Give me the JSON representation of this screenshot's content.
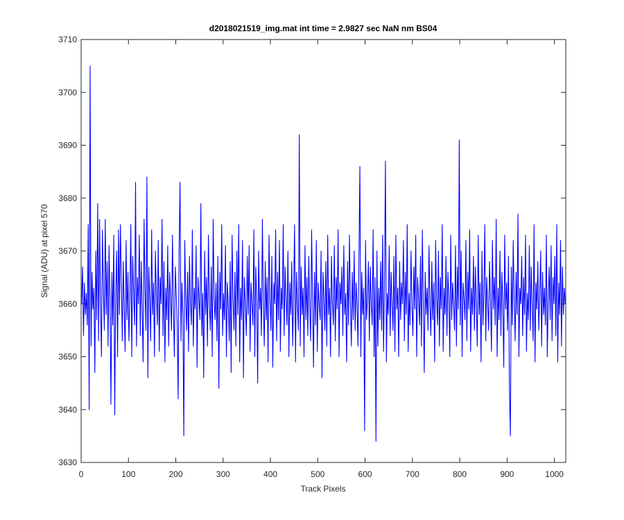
{
  "chart_data": {
    "type": "line",
    "title": "d2018021519_img.mat int time = 2.9827 sec  NaN nm BS04",
    "x_label": "Track Pixels",
    "y_label": "Signal (ADU) at pixel 570",
    "xlim": [
      0,
      1024
    ],
    "ylim": [
      3630,
      3710
    ],
    "xticks": [
      0,
      100,
      200,
      300,
      400,
      500,
      600,
      700,
      800,
      900,
      1000
    ],
    "yticks": [
      3630,
      3640,
      3650,
      3660,
      3670,
      3680,
      3690,
      3700,
      3710
    ],
    "grid": false,
    "series": [
      {
        "color": "#0000ff",
        "x": [
          1,
          3,
          5,
          7,
          9,
          11,
          13,
          15,
          17,
          19,
          21,
          23,
          25,
          27,
          29,
          31,
          33,
          35,
          37,
          39,
          41,
          43,
          45,
          47,
          49,
          51,
          53,
          55,
          57,
          59,
          61,
          63,
          65,
          67,
          69,
          71,
          73,
          75,
          77,
          79,
          81,
          83,
          85,
          87,
          89,
          91,
          93,
          95,
          97,
          99,
          101,
          103,
          105,
          107,
          109,
          111,
          113,
          115,
          117,
          119,
          121,
          123,
          125,
          127,
          129,
          131,
          133,
          135,
          137,
          139,
          141,
          143,
          145,
          147,
          149,
          151,
          153,
          155,
          157,
          159,
          161,
          163,
          165,
          167,
          169,
          171,
          173,
          175,
          177,
          179,
          181,
          183,
          185,
          187,
          189,
          191,
          193,
          195,
          197,
          199,
          201,
          203,
          205,
          207,
          209,
          211,
          213,
          215,
          217,
          219,
          221,
          223,
          225,
          227,
          229,
          231,
          233,
          235,
          237,
          239,
          241,
          243,
          245,
          247,
          249,
          251,
          253,
          255,
          257,
          259,
          261,
          263,
          265,
          267,
          269,
          271,
          273,
          275,
          277,
          279,
          281,
          283,
          285,
          287,
          289,
          291,
          293,
          295,
          297,
          299,
          301,
          303,
          305,
          307,
          309,
          311,
          313,
          315,
          317,
          319,
          321,
          323,
          325,
          327,
          329,
          331,
          333,
          335,
          337,
          339,
          341,
          343,
          345,
          347,
          349,
          351,
          353,
          355,
          357,
          359,
          361,
          363,
          365,
          367,
          369,
          371,
          373,
          375,
          377,
          379,
          381,
          383,
          385,
          387,
          389,
          391,
          393,
          395,
          397,
          399,
          401,
          403,
          405,
          407,
          409,
          411,
          413,
          415,
          417,
          419,
          421,
          423,
          425,
          427,
          429,
          431,
          433,
          435,
          437,
          439,
          441,
          443,
          445,
          447,
          449,
          451,
          453,
          455,
          457,
          459,
          461,
          463,
          465,
          467,
          469,
          471,
          473,
          475,
          477,
          479,
          481,
          483,
          485,
          487,
          489,
          491,
          493,
          495,
          497,
          499,
          501,
          503,
          505,
          507,
          509,
          511,
          513,
          515,
          517,
          519,
          521,
          523,
          525,
          527,
          529,
          531,
          533,
          535,
          537,
          539,
          541,
          543,
          545,
          547,
          549,
          551,
          553,
          555,
          557,
          559,
          561,
          563,
          565,
          567,
          569,
          571,
          573,
          575,
          577,
          579,
          581,
          583,
          585,
          587,
          589,
          591,
          593,
          595,
          597,
          599,
          601,
          603,
          605,
          607,
          609,
          611,
          613,
          615,
          617,
          619,
          621,
          623,
          625,
          627,
          629,
          631,
          633,
          635,
          637,
          639,
          641,
          643,
          645,
          647,
          649,
          651,
          653,
          655,
          657,
          659,
          661,
          663,
          665,
          667,
          669,
          671,
          673,
          675,
          677,
          679,
          681,
          683,
          685,
          687,
          689,
          691,
          693,
          695,
          697,
          699,
          701,
          703,
          705,
          707,
          709,
          711,
          713,
          715,
          717,
          719,
          721,
          723,
          725,
          727,
          729,
          731,
          733,
          735,
          737,
          739,
          741,
          743,
          745,
          747,
          749,
          751,
          753,
          755,
          757,
          759,
          761,
          763,
          765,
          767,
          769,
          771,
          773,
          775,
          777,
          779,
          781,
          783,
          785,
          787,
          789,
          791,
          793,
          795,
          797,
          799,
          801,
          803,
          805,
          807,
          809,
          811,
          813,
          815,
          817,
          819,
          821,
          823,
          825,
          827,
          829,
          831,
          833,
          835,
          837,
          839,
          841,
          843,
          845,
          847,
          849,
          851,
          853,
          855,
          857,
          859,
          861,
          863,
          865,
          867,
          869,
          871,
          873,
          875,
          877,
          879,
          881,
          883,
          885,
          887,
          889,
          891,
          893,
          895,
          897,
          899,
          901,
          903,
          905,
          907,
          909,
          911,
          913,
          915,
          917,
          919,
          921,
          923,
          925,
          927,
          929,
          931,
          933,
          935,
          937,
          939,
          941,
          943,
          945,
          947,
          949,
          951,
          953,
          955,
          957,
          959,
          961,
          963,
          965,
          967,
          969,
          971,
          973,
          975,
          977,
          979,
          981,
          983,
          985,
          987,
          989,
          991,
          993,
          995,
          997,
          999,
          1001,
          1003,
          1005,
          1007,
          1009,
          1011,
          1013,
          1015,
          1017,
          1019,
          1021,
          1023
        ],
        "values": [
          3660,
          3667,
          3654,
          3664,
          3658,
          3662,
          3656,
          3675,
          3640,
          3705,
          3652,
          3666,
          3659,
          3663,
          3647,
          3670,
          3657,
          3679,
          3653,
          3676,
          3660,
          3650,
          3674,
          3663,
          3655,
          3676,
          3658,
          3668,
          3652,
          3671,
          3661,
          3641,
          3666,
          3656,
          3673,
          3639,
          3662,
          3670,
          3650,
          3674,
          3658,
          3675,
          3664,
          3653,
          3668,
          3659,
          3651,
          3672,
          3657,
          3666,
          3653,
          3661,
          3675,
          3650,
          3669,
          3662,
          3656,
          3683,
          3652,
          3665,
          3660,
          3673,
          3654,
          3668,
          3659,
          3649,
          3676,
          3663,
          3655,
          3684,
          3646,
          3667,
          3661,
          3653,
          3674,
          3658,
          3664,
          3650,
          3670,
          3662,
          3656,
          3672,
          3651,
          3665,
          3660,
          3676,
          3654,
          3668,
          3649,
          3663,
          3657,
          3671,
          3652,
          3666,
          3661,
          3655,
          3673,
          3659,
          3650,
          3667,
          3662,
          3656,
          3642,
          3670,
          3683,
          3653,
          3664,
          3658,
          3635,
          3672,
          3661,
          3655,
          3666,
          3651,
          3669,
          3660,
          3656,
          3674,
          3652,
          3663,
          3659,
          3671,
          3648,
          3665,
          3661,
          3657,
          3679,
          3654,
          3662,
          3646,
          3670,
          3658,
          3665,
          3652,
          3673,
          3660,
          3655,
          3667,
          3650,
          3676,
          3661,
          3657,
          3664,
          3653,
          3669,
          3644,
          3666,
          3659,
          3675,
          3654,
          3662,
          3657,
          3671,
          3650,
          3664,
          3660,
          3653,
          3668,
          3647,
          3673,
          3661,
          3655,
          3666,
          3652,
          3670,
          3658,
          3675,
          3649,
          3663,
          3657,
          3672,
          3646,
          3665,
          3660,
          3654,
          3669,
          3658,
          3671,
          3651,
          3664,
          3660,
          3656,
          3674,
          3650,
          3667,
          3661,
          3645,
          3670,
          3659,
          3663,
          3654,
          3676,
          3660,
          3652,
          3668,
          3657,
          3665,
          3649,
          3673,
          3661,
          3655,
          3669,
          3648,
          3664,
          3660,
          3674,
          3653,
          3666,
          3657,
          3672,
          3651,
          3663,
          3659,
          3675,
          3654,
          3667,
          3661,
          3656,
          3670,
          3650,
          3664,
          3658,
          3668,
          3652,
          3662,
          3675,
          3649,
          3666,
          3660,
          3655,
          3692,
          3652,
          3667,
          3658,
          3663,
          3650,
          3671,
          3657,
          3665,
          3654,
          3669,
          3659,
          3653,
          3674,
          3661,
          3648,
          3666,
          3656,
          3672,
          3651,
          3664,
          3660,
          3657,
          3670,
          3646,
          3666,
          3661,
          3655,
          3668,
          3652,
          3673,
          3658,
          3663,
          3650,
          3669,
          3660,
          3656,
          3671,
          3653,
          3665,
          3659,
          3674,
          3650,
          3664,
          3660,
          3667,
          3654,
          3671,
          3658,
          3662,
          3649,
          3668,
          3656,
          3673,
          3660,
          3652,
          3666,
          3657,
          3670,
          3655,
          3664,
          3660,
          3652,
          3669,
          3686,
          3650,
          3666,
          3658,
          3663,
          3636,
          3672,
          3657,
          3661,
          3668,
          3653,
          3667,
          3660,
          3656,
          3674,
          3650,
          3665,
          3634,
          3670,
          3652,
          3663,
          3657,
          3668,
          3655,
          3673,
          3651,
          3664,
          3687,
          3649,
          3662,
          3658,
          3671,
          3654,
          3666,
          3660,
          3655,
          3669,
          3651,
          3673,
          3659,
          3663,
          3650,
          3668,
          3657,
          3664,
          3660,
          3672,
          3653,
          3666,
          3658,
          3675,
          3651,
          3662,
          3656,
          3670,
          3660,
          3654,
          3667,
          3659,
          3673,
          3650,
          3665,
          3661,
          3656,
          3669,
          3652,
          3674,
          3660,
          3647,
          3666,
          3658,
          3663,
          3655,
          3671,
          3660,
          3654,
          3668,
          3657,
          3664,
          3649,
          3672,
          3661,
          3656,
          3670,
          3652,
          3665,
          3659,
          3675,
          3651,
          3663,
          3658,
          3669,
          3654,
          3666,
          3661,
          3650,
          3673,
          3657,
          3664,
          3660,
          3655,
          3671,
          3652,
          3667,
          3659,
          3691,
          3656,
          3670,
          3650,
          3664,
          3661,
          3657,
          3672,
          3653,
          3666,
          3659,
          3674,
          3651,
          3663,
          3658,
          3669,
          3655,
          3667,
          3660,
          3652,
          3673,
          3658,
          3664,
          3649,
          3670,
          3656,
          3662,
          3675,
          3653,
          3665,
          3660,
          3655,
          3668,
          3661,
          3651,
          3672,
          3659,
          3665,
          3656,
          3676,
          3650,
          3663,
          3657,
          3670,
          3654,
          3666,
          3660,
          3648,
          3673,
          3659,
          3664,
          3655,
          3669,
          3644,
          3635,
          3667,
          3656,
          3672,
          3661,
          3653,
          3666,
          3658,
          3677,
          3650,
          3663,
          3660,
          3669,
          3654,
          3665,
          3658,
          3673,
          3651,
          3662,
          3657,
          3671,
          3655,
          3667,
          3660,
          3653,
          3675,
          3649,
          3664,
          3659,
          3668,
          3655,
          3662,
          3670,
          3652,
          3666,
          3658,
          3663,
          3656,
          3673,
          3650,
          3661,
          3667,
          3657,
          3671,
          3653,
          3665,
          3660,
          3669,
          3654,
          3675,
          3649,
          3664,
          3658,
          3672,
          3652,
          3667,
          3658,
          3663,
          3660
        ]
      }
    ]
  }
}
